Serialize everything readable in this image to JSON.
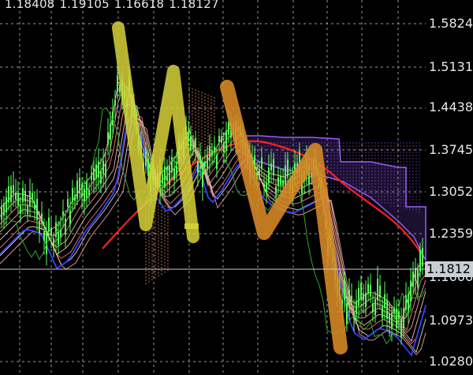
{
  "ohlc": {
    "open": "1.18408",
    "high": "1.19105",
    "low": "1.16618",
    "close": "1.18127"
  },
  "price_axis": [
    "1.5824",
    "1.5131",
    "1.4438",
    "1.3745",
    "1.3052",
    "1.2359",
    "1.1666",
    "1.0973",
    "1.0280"
  ],
  "current_price": "1.1812",
  "colors": {
    "background": "#000000",
    "grid": "#9a9a9a",
    "candles": "#5cff5c",
    "ma_red": "#ff2020",
    "ma_blue": "#3344ff",
    "ribbon": "#ffb0a0",
    "cloud": "#9a5cff",
    "marker_yellow": "#d7d23a",
    "marker_orange": "#d98a26",
    "price_tag_bg": "#c9ced3"
  }
}
